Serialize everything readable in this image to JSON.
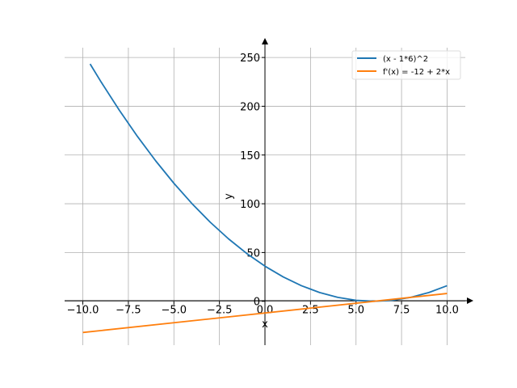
{
  "chart_data": {
    "type": "line",
    "xlabel": "x",
    "ylabel": "y",
    "xlim": [
      -11.0,
      11.0
    ],
    "ylim": [
      -45,
      270
    ],
    "grid": true,
    "legend_position": "top-right",
    "x_ticks": [
      -10.0,
      -7.5,
      -5.0,
      -2.5,
      0.0,
      2.5,
      5.0,
      7.5,
      10.0
    ],
    "x_tick_labels": [
      "−10.0",
      "−7.5",
      "−5.0",
      "−2.5",
      "0.0",
      "2.5",
      "5.0",
      "7.5",
      "10.0"
    ],
    "y_ticks": [
      0,
      50,
      100,
      150,
      200,
      250
    ],
    "y_tick_labels": [
      "0",
      "50",
      "100",
      "150",
      "200",
      "250"
    ],
    "series": [
      {
        "name": "(x - 1*6)^2",
        "color": "#1f77b4",
        "x": [
          -9.6,
          -9.0,
          -8.0,
          -7.0,
          -6.0,
          -5.0,
          -4.0,
          -3.0,
          -2.0,
          -1.0,
          0.0,
          1.0,
          2.0,
          3.0,
          4.0,
          5.0,
          6.0,
          7.0,
          8.0,
          9.0,
          10.0
        ],
        "y": [
          243.36,
          225,
          196,
          169,
          144,
          121,
          100,
          81,
          64,
          49,
          36,
          25,
          16,
          9,
          4,
          1,
          0,
          1,
          4,
          9,
          16
        ]
      },
      {
        "name": "f'(x) = -12 + 2*x",
        "color": "#ff7f0e",
        "x": [
          -10.0,
          10.0
        ],
        "y": [
          -32,
          8
        ]
      }
    ]
  }
}
